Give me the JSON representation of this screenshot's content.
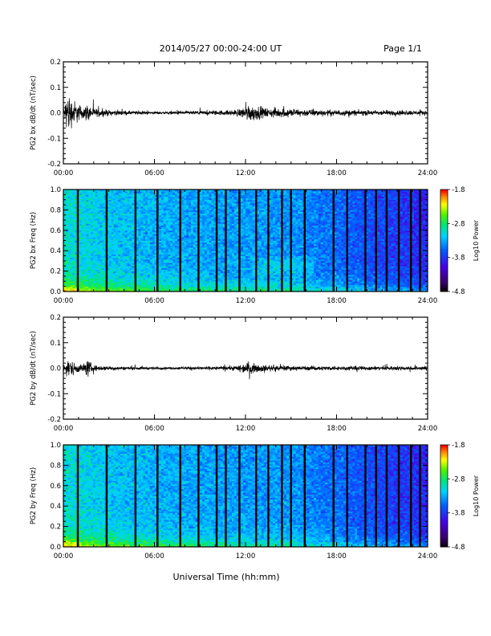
{
  "header": {
    "title": "2014/05/27  00:00-24:00 UT",
    "page": "Page 1/1"
  },
  "xlabel": "Universal Time (hh:mm)",
  "chart_data": [
    {
      "type": "line",
      "ylabel": "PG2 bx dB/dt (nT/sec)",
      "xlim": [
        0,
        24
      ],
      "ylim": [
        -0.2,
        0.2
      ],
      "x_ticks": [
        "00:00",
        "06:00",
        "12:00",
        "18:00",
        "24:00"
      ],
      "y_ticks": [
        "0.2",
        "0.1",
        "0.0",
        "-0.1",
        "-0.2"
      ],
      "series": [
        {
          "x": [
            0,
            0.3,
            0.5,
            0.8,
            1.0,
            1.3,
            1.6,
            2.0,
            3,
            4,
            5,
            6,
            7,
            8,
            9,
            10,
            11,
            11.5,
            11.9,
            12.2,
            12.6,
            13,
            13.5,
            14,
            14.5,
            15,
            16,
            17,
            18,
            19,
            20,
            21,
            22,
            23,
            24
          ],
          "y_amp": [
            0.02,
            0.15,
            0.1,
            0.08,
            0.06,
            0.04,
            0.06,
            0.03,
            0.02,
            0.015,
            0.012,
            0.01,
            0.01,
            0.012,
            0.014,
            0.015,
            0.018,
            0.025,
            0.04,
            0.06,
            0.05,
            0.04,
            0.03,
            0.035,
            0.03,
            0.028,
            0.025,
            0.022,
            0.02,
            0.02,
            0.018,
            0.018,
            0.018,
            0.016,
            0.015
          ]
        }
      ]
    },
    {
      "type": "heatmap",
      "ylabel": "PG2 bx Freq (Hz)",
      "xlim": [
        0,
        24
      ],
      "ylim": [
        0,
        1.0
      ],
      "x_ticks": [
        "00:00",
        "06:00",
        "12:00",
        "18:00",
        "24:00"
      ],
      "y_ticks": [
        "1.0",
        "0.8",
        "0.6",
        "0.4",
        "0.2",
        "0.0"
      ],
      "colorbar": {
        "label": "Log10 Power",
        "ticks": [
          "-1.8",
          "-2.8",
          "-3.8",
          "-4.8"
        ],
        "range": [
          -4.8,
          -1.8
        ]
      },
      "gaps_hours": [
        0.95,
        2.85,
        4.75,
        6.2,
        7.7,
        8.9,
        10.1,
        10.7,
        11.6,
        12.7,
        13.5,
        14.4,
        15.0,
        15.9,
        17.8,
        18.7,
        19.9,
        20.6,
        21.3,
        22.1,
        22.9,
        23.5
      ]
    },
    {
      "type": "line",
      "ylabel": "PG2 by dB/dt (nT/sec)",
      "xlim": [
        0,
        24
      ],
      "ylim": [
        -0.2,
        0.2
      ],
      "x_ticks": [
        "00:00",
        "06:00",
        "12:00",
        "18:00",
        "24:00"
      ],
      "y_ticks": [
        "0.2",
        "0.1",
        "0.0",
        "-0.1",
        "-0.2"
      ],
      "series": [
        {
          "x": [
            0,
            0.3,
            0.5,
            0.8,
            1.0,
            1.3,
            1.6,
            2.0,
            3,
            4,
            5,
            6,
            7,
            8,
            9,
            10,
            11,
            11.5,
            11.9,
            12.2,
            12.6,
            13,
            13.5,
            14,
            14.5,
            15,
            16,
            17,
            18,
            19,
            20,
            21,
            22,
            23,
            24
          ],
          "y_amp": [
            0.02,
            0.07,
            0.05,
            0.04,
            0.03,
            0.03,
            0.06,
            0.02,
            0.015,
            0.012,
            0.01,
            0.01,
            0.008,
            0.01,
            0.012,
            0.012,
            0.015,
            0.02,
            0.035,
            0.04,
            0.03,
            0.025,
            0.02,
            0.02,
            0.018,
            0.015,
            0.015,
            0.015,
            0.015,
            0.015,
            0.014,
            0.014,
            0.015,
            0.014,
            0.014
          ]
        }
      ]
    },
    {
      "type": "heatmap",
      "ylabel": "PG2 by Freq (Hz)",
      "xlim": [
        0,
        24
      ],
      "ylim": [
        0,
        1.0
      ],
      "x_ticks": [
        "00:00",
        "06:00",
        "12:00",
        "18:00",
        "24:00"
      ],
      "y_ticks": [
        "1.0",
        "0.8",
        "0.6",
        "0.4",
        "0.2",
        "0.0"
      ],
      "colorbar": {
        "label": "Log10 Power",
        "ticks": [
          "-1.8",
          "-2.8",
          "-3.8",
          "-4.8"
        ],
        "range": [
          -4.8,
          -1.8
        ]
      },
      "gaps_hours": [
        0.95,
        2.85,
        4.75,
        6.2,
        7.7,
        8.9,
        10.1,
        10.7,
        11.6,
        12.7,
        13.5,
        14.4,
        15.0,
        15.9,
        17.8,
        18.7,
        19.9,
        20.6,
        21.3,
        22.1,
        22.9,
        23.5
      ]
    }
  ]
}
